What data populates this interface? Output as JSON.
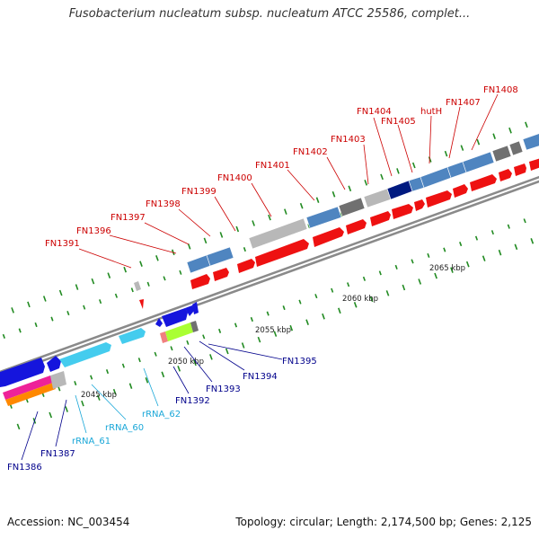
{
  "title": "Fusobacterium nucleatum subsp. nucleatum ATCC 25586, complet...",
  "footer": {
    "accession": "Accession: NC_003454",
    "summary": "Topology: circular; Length: 2,174,500 bp; Genes: 2,125"
  },
  "colors": {
    "forward_cds": "#ee1111",
    "reverse_cds": "#1515dd",
    "rrna": "#44ccee",
    "trna": "#ff8800",
    "ncrna": "#ee2299",
    "steelblue_feature": "#4f85c0",
    "grey_feature": "#b8b8b8",
    "darkgrey_feature": "#707070",
    "navy_feature": "#001a80",
    "lime_feature": "#aaff33",
    "pink_feature": "#f08080",
    "tick": "#228b22",
    "backbone": "#808080",
    "label_forward": "#cc0000",
    "label_reverse": "#00008b",
    "label_rna": "#1aa7d8"
  },
  "scale_labels": [
    "2045 kbp",
    "2050 kbp",
    "2055 kbp",
    "2060 kbp",
    "2065 kbp"
  ],
  "labels_forward": [
    "FN1391",
    "FN1396",
    "FN1397",
    "FN1398",
    "FN1399",
    "FN1400",
    "FN1401",
    "FN1402",
    "FN1403",
    "FN1404",
    "FN1405",
    "hutH",
    "FN1407",
    "FN1408"
  ],
  "labels_reverse": [
    "FN1386",
    "FN1387",
    "FN1392",
    "FN1393",
    "FN1394",
    "FN1395"
  ],
  "labels_rna": [
    "rRNA_61",
    "rRNA_60",
    "rRNA_62"
  ]
}
